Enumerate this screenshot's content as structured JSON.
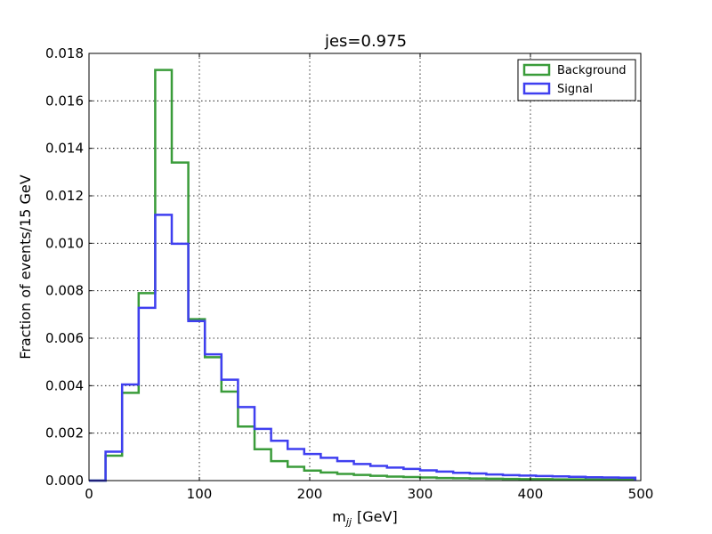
{
  "chart_data": {
    "type": "histogram-step",
    "title": "jes=0.975",
    "xlabel": "m",
    "xlabel_subscript": "jj",
    "xlabel_unit": "[GeV]",
    "ylabel": "Fraction of events/15 GeV",
    "xlim": [
      0,
      500
    ],
    "ylim": [
      0,
      0.018
    ],
    "x_ticks": [
      0,
      100,
      200,
      300,
      400,
      500
    ],
    "y_ticks": [
      0.0,
      0.002,
      0.004,
      0.006,
      0.008,
      0.01,
      0.012,
      0.014,
      0.016,
      0.018
    ],
    "y_tick_labels": [
      "0.000",
      "0.002",
      "0.004",
      "0.006",
      "0.008",
      "0.010",
      "0.012",
      "0.014",
      "0.016",
      "0.018"
    ],
    "grid": true,
    "legend_position": "top-right",
    "bin_edges": [
      0,
      15,
      30,
      45,
      60,
      75,
      90,
      105,
      120,
      135,
      150,
      165,
      180,
      195,
      210,
      225,
      240,
      255,
      270,
      285,
      300,
      315,
      330,
      345,
      360,
      375,
      390,
      405,
      420,
      435,
      450,
      465,
      480,
      495
    ],
    "series": [
      {
        "name": "Background",
        "color": "#3a9c3a",
        "values": [
          0.0,
          0.00105,
          0.0037,
          0.0079,
          0.0173,
          0.0134,
          0.0068,
          0.0052,
          0.00375,
          0.00228,
          0.00132,
          0.00082,
          0.00058,
          0.00042,
          0.00034,
          0.00028,
          0.00024,
          0.0002,
          0.00017,
          0.00015,
          0.00013,
          0.00011,
          0.0001,
          9e-05,
          8e-05,
          7e-05,
          6e-05,
          6e-05,
          5e-05,
          5e-05,
          4e-05,
          4e-05,
          4e-05
        ]
      },
      {
        "name": "Signal",
        "color": "#3f3ff0",
        "values": [
          0.0,
          0.00122,
          0.00405,
          0.00728,
          0.0112,
          0.00998,
          0.00672,
          0.00532,
          0.00425,
          0.0031,
          0.00218,
          0.00168,
          0.00133,
          0.00112,
          0.00096,
          0.00082,
          0.0007,
          0.00062,
          0.00055,
          0.00049,
          0.00043,
          0.00038,
          0.00033,
          0.0003,
          0.00026,
          0.00023,
          0.00021,
          0.00019,
          0.00018,
          0.00016,
          0.00014,
          0.00013,
          0.00012
        ]
      }
    ]
  }
}
